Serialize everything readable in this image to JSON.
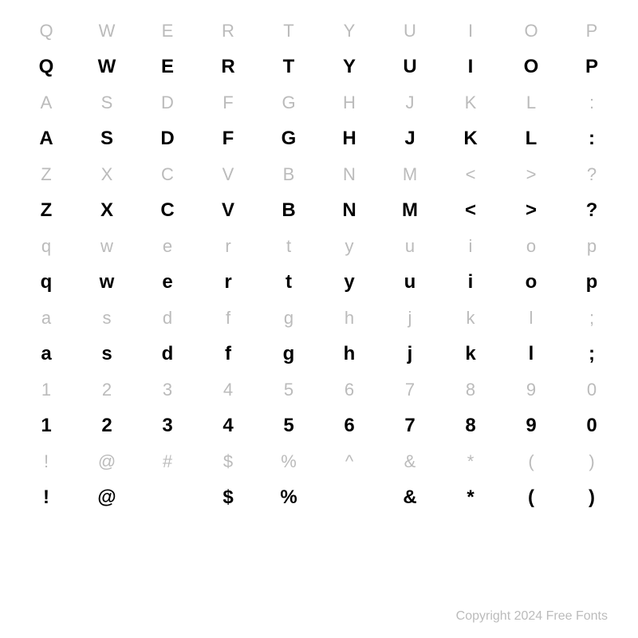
{
  "chart": {
    "type": "table",
    "rows": [
      {
        "labels": [
          "Q",
          "W",
          "E",
          "R",
          "T",
          "Y",
          "U",
          "I",
          "O",
          "P"
        ],
        "glyphs": [
          "Q",
          "W",
          "E",
          "R",
          "T",
          "Y",
          "U",
          "I",
          "O",
          "P"
        ]
      },
      {
        "labels": [
          "A",
          "S",
          "D",
          "F",
          "G",
          "H",
          "J",
          "K",
          "L",
          ":"
        ],
        "glyphs": [
          "A",
          "S",
          "D",
          "F",
          "G",
          "H",
          "J",
          "K",
          "L",
          ":"
        ]
      },
      {
        "labels": [
          "Z",
          "X",
          "C",
          "V",
          "B",
          "N",
          "M",
          "<",
          ">",
          "?"
        ],
        "glyphs": [
          "Z",
          "X",
          "C",
          "V",
          "B",
          "N",
          "M",
          "<",
          ">",
          "?"
        ]
      },
      {
        "labels": [
          "q",
          "w",
          "e",
          "r",
          "t",
          "y",
          "u",
          "i",
          "o",
          "p"
        ],
        "glyphs": [
          "q",
          "w",
          "e",
          "r",
          "t",
          "y",
          "u",
          "i",
          "o",
          "p"
        ]
      },
      {
        "labels": [
          "a",
          "s",
          "d",
          "f",
          "g",
          "h",
          "j",
          "k",
          "l",
          ";"
        ],
        "glyphs": [
          "a",
          "s",
          "d",
          "f",
          "g",
          "h",
          "j",
          "k",
          "l",
          ";"
        ]
      },
      {
        "labels": [
          "1",
          "2",
          "3",
          "4",
          "5",
          "6",
          "7",
          "8",
          "9",
          "0"
        ],
        "glyphs": [
          "1",
          "2",
          "3",
          "4",
          "5",
          "6",
          "7",
          "8",
          "9",
          "0"
        ]
      },
      {
        "labels": [
          "!",
          "@",
          "#",
          "$",
          "%",
          "^",
          "&",
          "*",
          "(",
          ")"
        ],
        "glyphs": [
          "!",
          "@",
          "",
          "$",
          "%",
          "",
          "&",
          "*",
          "(",
          ")"
        ]
      }
    ],
    "label_color": "#bbbbbb",
    "glyph_color": "#000000",
    "label_fontsize": 22,
    "glyph_fontsize": 24,
    "background_color": "#ffffff",
    "columns": 10
  },
  "footer": {
    "text": "Copyright 2024 Free Fonts",
    "color": "#bbbbbb",
    "fontsize": 16
  }
}
